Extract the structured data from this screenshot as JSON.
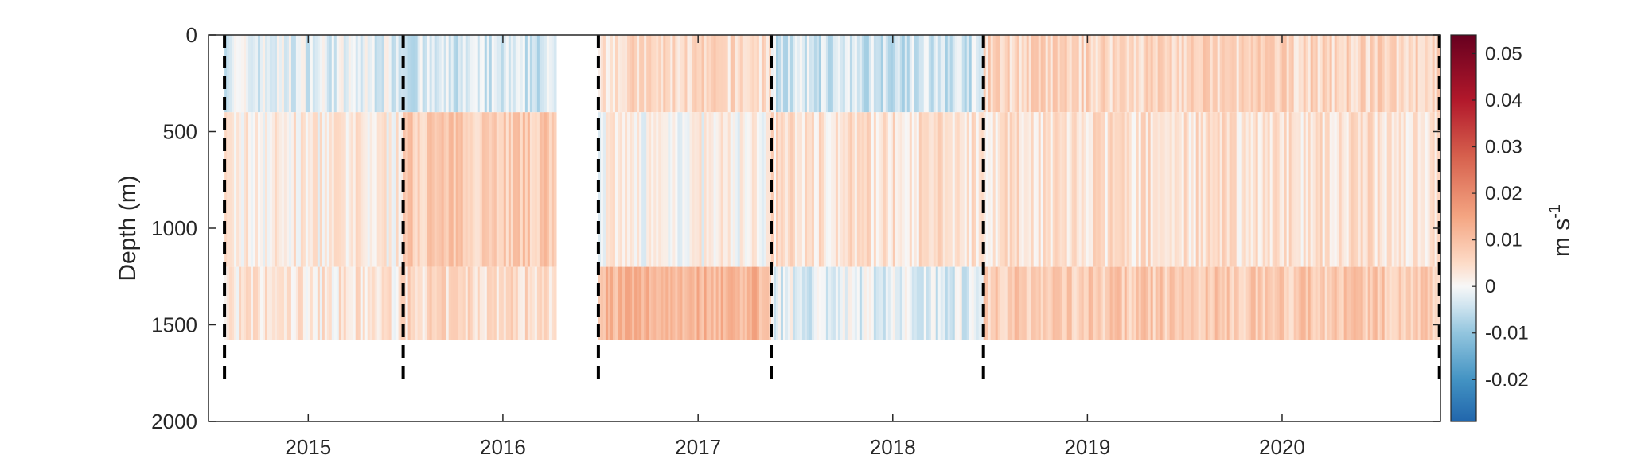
{
  "chart_data": {
    "type": "heatmap",
    "title": "",
    "xlabel": "",
    "ylabel": "Depth (m)",
    "x_axis": {
      "range": [
        "2014-06-28",
        "2020-10-24"
      ],
      "tick_labels": [
        "2015",
        "2016",
        "2017",
        "2018",
        "2019",
        "2020"
      ],
      "tick_values": [
        "2015-01-01",
        "2016-01-01",
        "2017-01-01",
        "2018-01-01",
        "2019-01-01",
        "2020-01-01"
      ]
    },
    "y_axis": {
      "range": [
        0,
        2000
      ],
      "reversed": true,
      "ticks": [
        0,
        500,
        1000,
        1500,
        2000
      ],
      "tick_labels": [
        "0",
        "500",
        "1000",
        "1500",
        "2000"
      ]
    },
    "data_depth_range": [
      0,
      1580
    ],
    "deployment_boundaries": [
      "2014-07-28",
      "2015-06-28",
      "2016-06-28",
      "2017-05-18",
      "2018-06-20",
      "2020-10-22"
    ],
    "data_gap": [
      "2016-04-10",
      "2016-06-28"
    ],
    "colorbar": {
      "label": "m s",
      "label_superscript": "-1",
      "range": [
        -0.029,
        0.054
      ],
      "ticks": [
        0.05,
        0.04,
        0.03,
        0.02,
        0.01,
        0,
        -0.01,
        -0.02
      ],
      "tick_labels": [
        "0.05",
        "0.04",
        "0.03",
        "0.02",
        "0.01",
        "0",
        "-0.01",
        "-0.02"
      ],
      "colormap": [
        "#2166ac",
        "#4393c3",
        "#92c5de",
        "#d1e5f0",
        "#f7f7f7",
        "#fddbc7",
        "#f4a582",
        "#d6604d",
        "#b2182b",
        "#67001f"
      ]
    },
    "field_summary": [
      {
        "period": [
          "2014-07-28",
          "2015-06-28"
        ],
        "upper_0_400": -0.002,
        "mid_400_1200": 0.002,
        "deep_1200_1580": 0.003
      },
      {
        "period": [
          "2015-06-28",
          "2016-04-10"
        ],
        "upper_0_400": -0.004,
        "mid_400_1200": 0.008,
        "deep_1200_1580": 0.005
      },
      {
        "period": [
          "2016-06-28",
          "2017-05-18"
        ],
        "upper_0_400": 0.005,
        "mid_400_1200": 0.001,
        "deep_1200_1580": 0.012
      },
      {
        "period": [
          "2017-05-18",
          "2018-06-20"
        ],
        "upper_0_400": -0.004,
        "mid_400_1200": 0.004,
        "deep_1200_1580": -0.002
      },
      {
        "period": [
          "2018-06-20",
          "2020-10-22"
        ],
        "upper_0_400": 0.006,
        "mid_400_1200": 0.004,
        "deep_1200_1580": 0.008
      }
    ]
  }
}
